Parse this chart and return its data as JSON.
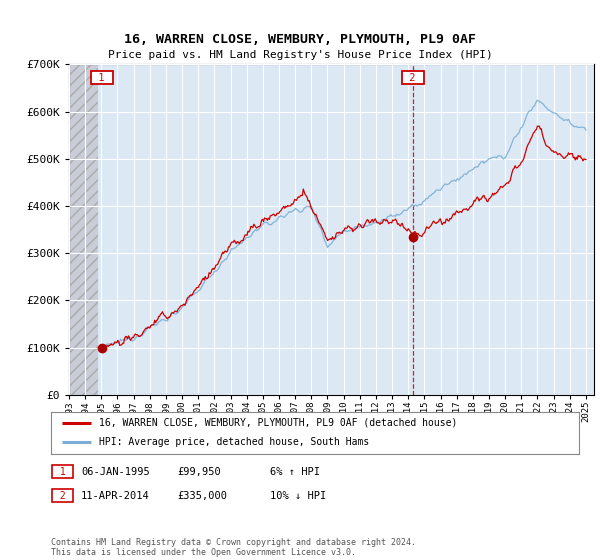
{
  "title": "16, WARREN CLOSE, WEMBURY, PLYMOUTH, PL9 0AF",
  "subtitle": "Price paid vs. HM Land Registry's House Price Index (HPI)",
  "legend_line1": "16, WARREN CLOSE, WEMBURY, PLYMOUTH, PL9 0AF (detached house)",
  "legend_line2": "HPI: Average price, detached house, South Hams",
  "sale1_date": "06-JAN-1995",
  "sale1_price": 99950,
  "sale1_year": 1995.02,
  "sale2_date": "11-APR-2014",
  "sale2_price": 335000,
  "sale2_year": 2014.28,
  "footnote": "Contains HM Land Registry data © Crown copyright and database right 2024.\nThis data is licensed under the Open Government Licence v3.0.",
  "ylim": [
    0,
    700000
  ],
  "xlim_start": 1993.0,
  "xlim_end": 2025.5,
  "hatch_end": 1994.8,
  "bg_color": "#dce9f5",
  "hatch_color": "#c8cdd8",
  "line_color_red": "#cc0000",
  "line_color_blue": "#7aaed6",
  "point_color": "#aa0000",
  "dashed_line_color": "#cc0000",
  "box_color": "#cc0000",
  "grid_color": "#ffffff",
  "yticks": [
    0,
    100000,
    200000,
    300000,
    400000,
    500000,
    600000,
    700000
  ],
  "ytick_labels": [
    "£0",
    "£100K",
    "£200K",
    "£300K",
    "£400K",
    "£500K",
    "£600K",
    "£700K"
  ],
  "xtick_years": [
    1993,
    1994,
    1995,
    1996,
    1997,
    1998,
    1999,
    2000,
    2001,
    2002,
    2003,
    2004,
    2005,
    2006,
    2007,
    2008,
    2009,
    2010,
    2011,
    2012,
    2013,
    2014,
    2015,
    2016,
    2017,
    2018,
    2019,
    2020,
    2021,
    2022,
    2023,
    2024,
    2025
  ]
}
